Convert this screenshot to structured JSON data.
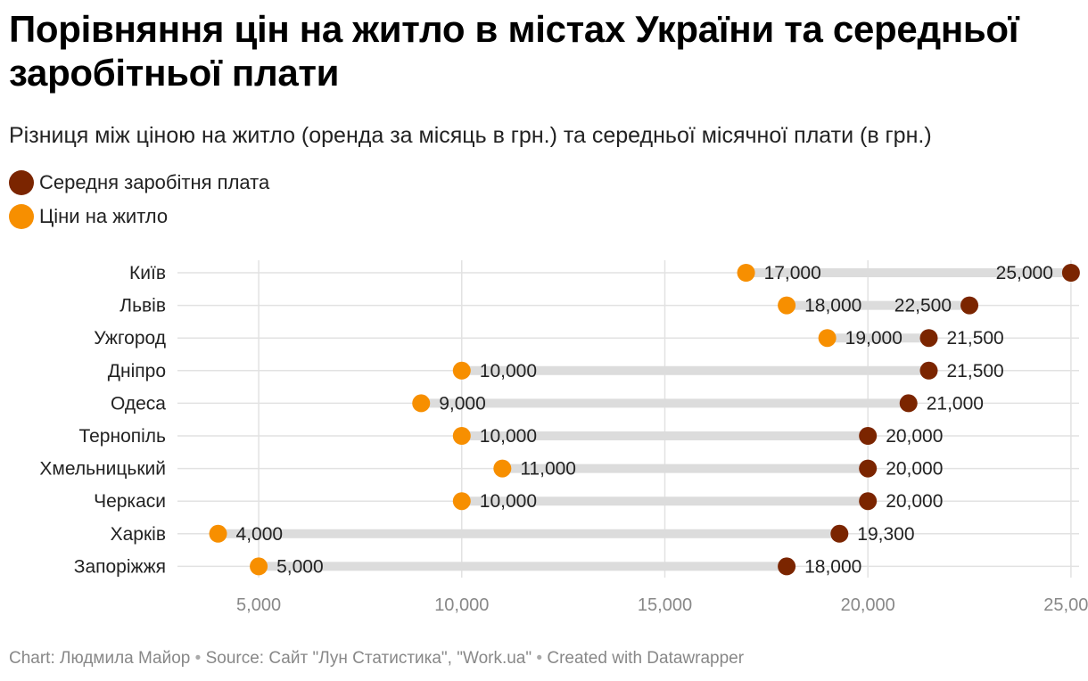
{
  "header": {
    "title": "Порівняння цін на житло в містах України та середньої заробітньої плати",
    "subtitle": "Різниця між ціною на житло (оренда за місяць в грн.) та середньої місячної плати (в грн.)"
  },
  "legend": [
    {
      "label": "Середня заробітня плата",
      "color": "#7b2500"
    },
    {
      "label": "Ціни на житло",
      "color": "#f78f00"
    }
  ],
  "colors": {
    "salary": "#7b2500",
    "housing": "#f78f00",
    "range_bar": "#dcdcdc",
    "grid": "#e2e2e2",
    "tick_text": "#888888"
  },
  "chart_data": {
    "type": "range-dot",
    "title": "Порівняння цін на житло в містах України та середньої заробітньої плати",
    "subtitle": "Різниця між ціною на житло (оренда за місяць в грн.) та середньої місячної плати (в грн.)",
    "xlim": [
      3000,
      25200
    ],
    "xticks": [
      5000,
      10000,
      15000,
      20000,
      25000
    ],
    "xtick_labels": [
      "5,000",
      "10,000",
      "15,000",
      "20,000",
      "25,000"
    ],
    "grid": true,
    "categories": [
      "Київ",
      "Львів",
      "Ужгород",
      "Дніпро",
      "Одеса",
      "Тернопіль",
      "Хмельницький",
      "Черкаси",
      "Харків",
      "Запоріжжя"
    ],
    "series": [
      {
        "name": "Ціни на житло",
        "values": [
          17000,
          18000,
          19000,
          10000,
          9000,
          10000,
          11000,
          10000,
          4000,
          5000
        ],
        "labels": [
          "17,000",
          "18,000",
          "19,000",
          "10,000",
          "9,000",
          "10,000",
          "11,000",
          "10,000",
          "4,000",
          "5,000"
        ]
      },
      {
        "name": "Середня заробітня плата",
        "values": [
          25000,
          22500,
          21500,
          21500,
          21000,
          20000,
          20000,
          20000,
          19300,
          18000
        ],
        "labels": [
          "25,000",
          "22,500",
          "21,500",
          "21,500",
          "21,000",
          "20,000",
          "20,000",
          "20,000",
          "19,300",
          "18,000"
        ]
      }
    ]
  },
  "footer": {
    "chart_credit": "Chart: Людмила Майор",
    "separator": "•",
    "source": "Source: Сайт \"Лун Статистика\", \"Work.ua\"",
    "created_with": "Created with Datawrapper"
  }
}
